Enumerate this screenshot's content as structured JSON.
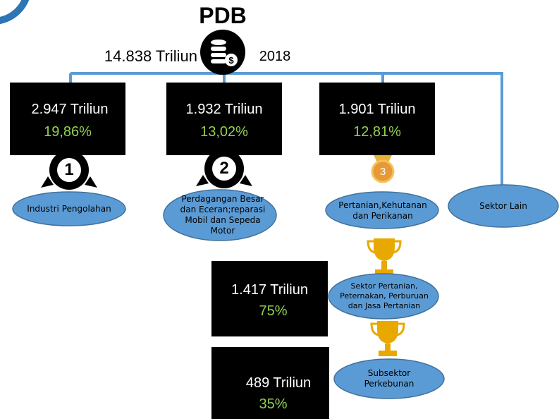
{
  "header": {
    "title": "PDB",
    "total": "14.838 Triliun",
    "year": "2018"
  },
  "sectors": [
    {
      "amount": "2.947 Triliun",
      "share": "19,86%",
      "rank": "1",
      "label": "Industri Pengolahan"
    },
    {
      "amount": "1.932 Triliun",
      "share": "13,02%",
      "rank": "2",
      "label": "Perdagangan Besar dan Eceran;reparasi Mobil dan Sepeda Motor"
    },
    {
      "amount": "1.901 Triliun",
      "share": "12,81%",
      "rank": "3",
      "label": "Pertanian,Kehutanan dan Perikanan"
    }
  ],
  "other": "Sektor Lain",
  "subsectors": [
    {
      "label": "Sektor Pertanian, Peternakan, Perburuan dan Jasa Pertanian",
      "amount": "1.417 Triliun",
      "share": "75%"
    },
    {
      "label": "Subsektor Perkebunan",
      "amount": "489 Triliun",
      "share": "35%"
    }
  ]
}
